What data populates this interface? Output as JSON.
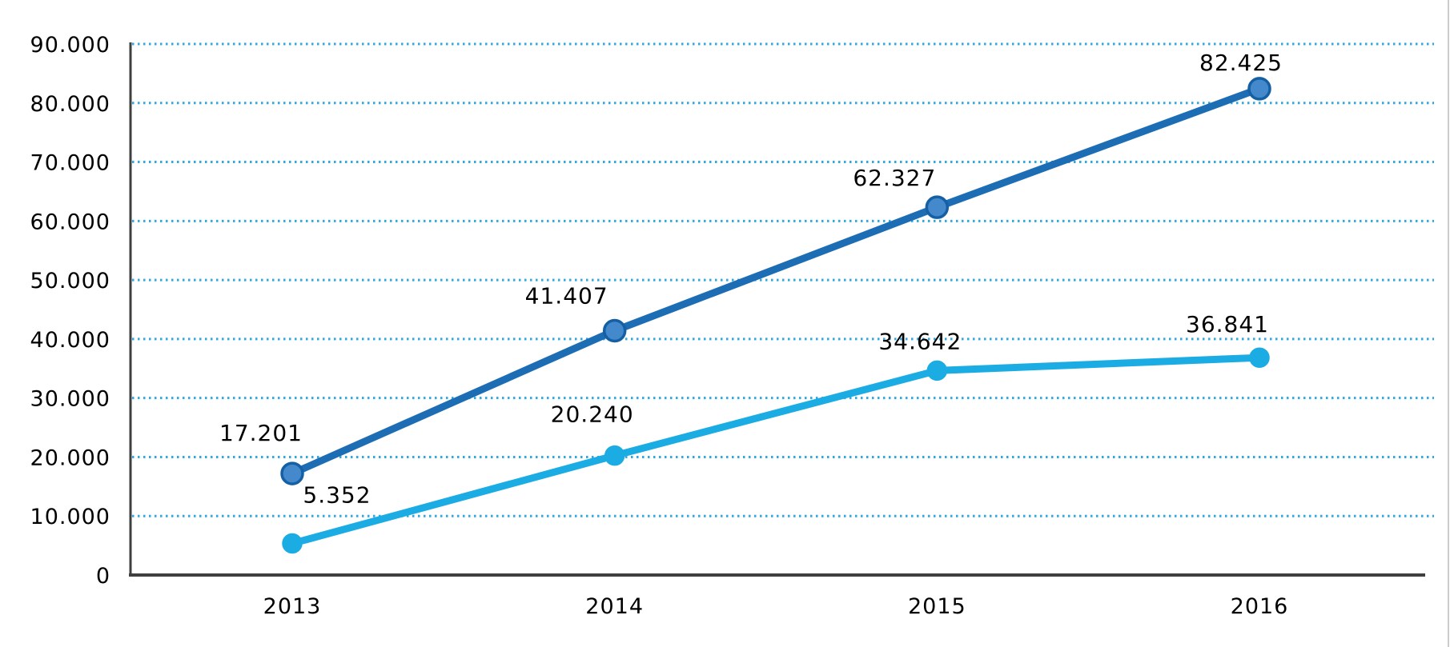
{
  "chart_data": {
    "type": "line",
    "title": "",
    "xlabel": "",
    "ylabel": "",
    "categories": [
      "2013",
      "2014",
      "2015",
      "2016"
    ],
    "series": [
      {
        "id": "series-dark-blue",
        "color": "#1D6DB5",
        "marker_fill": "#4489CB",
        "marker_stroke": "#1560A4",
        "marker_radius": 13,
        "values": [
          17201,
          41407,
          62327,
          82425
        ],
        "labels": [
          "17.201",
          "41.407",
          "62.327",
          "82.425"
        ],
        "label_offsets": [
          [
            -39,
            -41
          ],
          [
            -60,
            -34
          ],
          [
            -53,
            -27
          ],
          [
            -23,
            -23
          ]
        ]
      },
      {
        "id": "series-light-blue",
        "color": "#1CACE4",
        "marker_fill": "#1CACE4",
        "marker_stroke": "#1CACE4",
        "marker_radius": 11,
        "values": [
          5352,
          20240,
          34642,
          36841
        ],
        "labels": [
          "5.352",
          "20.240",
          "34.642",
          "36.841"
        ],
        "label_offsets": [
          [
            56,
            -51
          ],
          [
            -28,
            -42
          ],
          [
            -21,
            -27
          ],
          [
            -40,
            -32
          ]
        ]
      }
    ],
    "y_ticks": [
      {
        "value": 0,
        "label": "0"
      },
      {
        "value": 10000,
        "label": "10.000"
      },
      {
        "value": 20000,
        "label": "20.000"
      },
      {
        "value": 30000,
        "label": "30.000"
      },
      {
        "value": 40000,
        "label": "40.000"
      },
      {
        "value": 50000,
        "label": "50.000"
      },
      {
        "value": 60000,
        "label": "60.000"
      },
      {
        "value": 70000,
        "label": "70.000"
      },
      {
        "value": 80000,
        "label": "80.000"
      },
      {
        "value": 90000,
        "label": "90.000"
      }
    ],
    "ylim": [
      0,
      90000
    ],
    "grid": "horizontal-dotted",
    "gridline_color": "#2EA8DF",
    "axis_color": "#3F3F3F",
    "text_color": "#000000",
    "legend": "none"
  },
  "page": {
    "right_edge_line_color": "#cccccc"
  }
}
